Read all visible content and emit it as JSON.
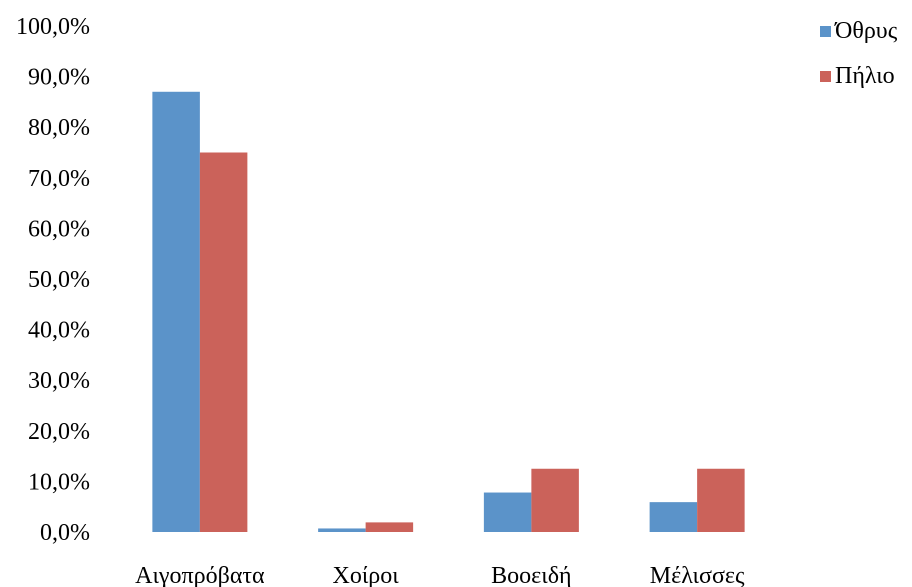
{
  "chart_data": {
    "type": "bar",
    "categories": [
      "Αιγοπρόβατα",
      "Χοίροι",
      "Βοοειδή",
      "Μέλισσες"
    ],
    "series": [
      {
        "name": "Όθρυς",
        "color": "#5B93C9",
        "values": [
          87.0,
          0.7,
          7.8,
          5.9
        ]
      },
      {
        "name": "Πήλιο",
        "color": "#CB625A",
        "values": [
          75.0,
          1.9,
          12.5,
          12.5
        ]
      }
    ],
    "ylim": [
      0,
      100
    ],
    "y_ticks": [
      "0,0%",
      "10,0%",
      "20,0%",
      "30,0%",
      "40,0%",
      "50,0%",
      "60,0%",
      "70,0%",
      "80,0%",
      "90,0%",
      "100,0%"
    ],
    "grid": false,
    "legend_position": "top-right"
  }
}
